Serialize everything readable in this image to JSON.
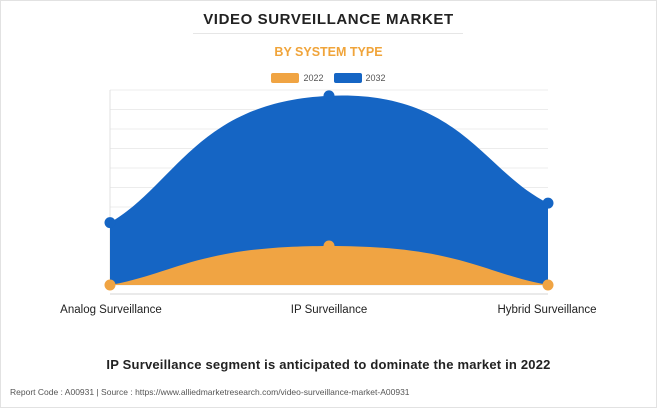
{
  "header": {
    "title": "VIDEO SURVEILLANCE MARKET",
    "subtitle": "BY SYSTEM TYPE"
  },
  "colors": {
    "series_2022": "#f0a443",
    "series_2032": "#1565c4",
    "subtitle": "#f0a43a"
  },
  "chart_data": {
    "type": "area",
    "categories": [
      "Analog Surveillance",
      "IP Surveillance",
      "Hybrid Surveillance"
    ],
    "series": [
      {
        "name": "2022",
        "values": [
          0,
          20,
          0
        ]
      },
      {
        "name": "2032",
        "values": [
          32,
          97,
          42
        ]
      }
    ],
    "ylim": [
      0,
      100
    ],
    "grid": true,
    "legend": "top"
  },
  "headline": "IP Surveillance segment is anticipated to dominate the market in 2022",
  "footer": "Report Code : A00931  |  Source : https://www.alliedmarketresearch.com/video-surveillance-market-A00931"
}
